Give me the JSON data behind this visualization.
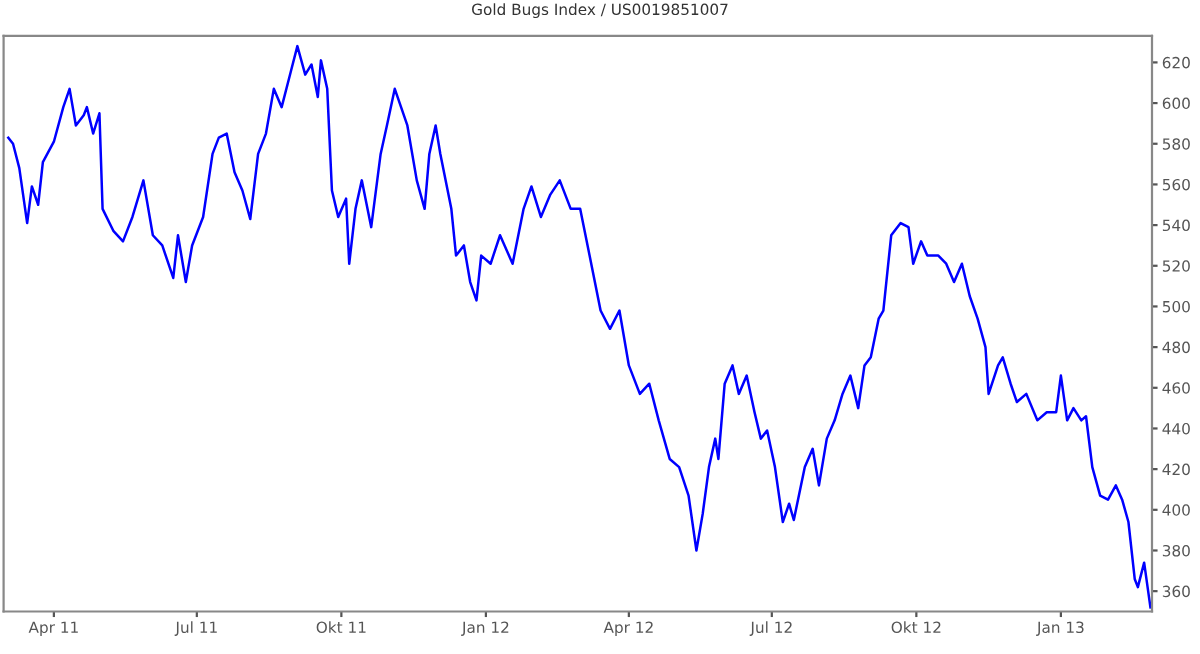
{
  "chart_data": {
    "type": "line",
    "title": "Gold Bugs Index / US0019851007",
    "x": [
      "2011-03-03",
      "2011-03-06",
      "2011-03-10",
      "2011-03-15",
      "2011-03-18",
      "2011-03-22",
      "2011-03-25",
      "2011-04-01",
      "2011-04-07",
      "2011-04-11",
      "2011-04-15",
      "2011-04-20",
      "2011-04-22",
      "2011-04-26",
      "2011-04-30",
      "2011-05-02",
      "2011-05-09",
      "2011-05-15",
      "2011-05-21",
      "2011-05-28",
      "2011-06-03",
      "2011-06-09",
      "2011-06-16",
      "2011-06-19",
      "2011-06-24",
      "2011-06-28",
      "2011-07-05",
      "2011-07-11",
      "2011-07-15",
      "2011-07-20",
      "2011-07-25",
      "2011-07-30",
      "2011-08-04",
      "2011-08-09",
      "2011-08-14",
      "2011-08-19",
      "2011-08-24",
      "2011-08-30",
      "2011-09-03",
      "2011-09-08",
      "2011-09-12",
      "2011-09-16",
      "2011-09-18",
      "2011-09-22",
      "2011-09-25",
      "2011-09-29",
      "2011-10-04",
      "2011-10-06",
      "2011-10-10",
      "2011-10-14",
      "2011-10-20",
      "2011-10-26",
      "2011-10-30",
      "2011-11-04",
      "2011-11-08",
      "2011-11-12",
      "2011-11-18",
      "2011-11-23",
      "2011-11-26",
      "2011-11-30",
      "2011-12-03",
      "2011-12-10",
      "2011-12-13",
      "2011-12-18",
      "2011-12-22",
      "2011-12-26",
      "2011-12-29",
      "2012-01-04",
      "2012-01-10",
      "2012-01-18",
      "2012-01-25",
      "2012-01-30",
      "2012-02-05",
      "2012-02-11",
      "2012-02-17",
      "2012-02-24",
      "2012-03-01",
      "2012-03-07",
      "2012-03-14",
      "2012-03-20",
      "2012-03-26",
      "2012-04-01",
      "2012-04-08",
      "2012-04-14",
      "2012-04-20",
      "2012-04-27",
      "2012-05-03",
      "2012-05-09",
      "2012-05-14",
      "2012-05-18",
      "2012-05-22",
      "2012-05-26",
      "2012-05-28",
      "2012-06-01",
      "2012-06-06",
      "2012-06-10",
      "2012-06-15",
      "2012-06-20",
      "2012-06-24",
      "2012-06-28",
      "2012-07-03",
      "2012-07-08",
      "2012-07-12",
      "2012-07-15",
      "2012-07-22",
      "2012-07-27",
      "2012-07-31",
      "2012-08-05",
      "2012-08-10",
      "2012-08-15",
      "2012-08-20",
      "2012-08-25",
      "2012-08-29",
      "2012-09-02",
      "2012-09-07",
      "2012-09-10",
      "2012-09-15",
      "2012-09-21",
      "2012-09-26",
      "2012-09-29",
      "2012-10-04",
      "2012-10-08",
      "2012-10-15",
      "2012-10-20",
      "2012-10-25",
      "2012-10-30",
      "2012-11-04",
      "2012-11-09",
      "2012-11-14",
      "2012-11-16",
      "2012-11-22",
      "2012-11-25",
      "2012-11-30",
      "2012-12-04",
      "2012-12-10",
      "2012-12-17",
      "2012-12-23",
      "2012-12-29",
      "2013-01-01",
      "2013-01-05",
      "2013-01-09",
      "2013-01-14",
      "2013-01-17",
      "2013-01-21",
      "2013-01-26",
      "2013-01-31",
      "2013-02-05",
      "2013-02-09",
      "2013-02-13",
      "2013-02-17",
      "2013-02-19",
      "2013-02-23",
      "2013-02-27"
    ],
    "series": [
      {
        "color": "#0000ff",
        "values": [
          583,
          580,
          568,
          541,
          559,
          550,
          571,
          581,
          598,
          607,
          589,
          594,
          598,
          585,
          595,
          548,
          537,
          532,
          544,
          562,
          535,
          530,
          514,
          535,
          512,
          530,
          544,
          575,
          583,
          585,
          566,
          557,
          543,
          575,
          585,
          607,
          598,
          616,
          628,
          614,
          619,
          603,
          621,
          607,
          557,
          544,
          553,
          521,
          548,
          562,
          539,
          575,
          589,
          607,
          598,
          589,
          562,
          548,
          575,
          589,
          575,
          548,
          525,
          530,
          512,
          503,
          525,
          521,
          535,
          521,
          548,
          559,
          544,
          555,
          562,
          548,
          548,
          525,
          498,
          489,
          498,
          471,
          457,
          462,
          444,
          425,
          421,
          407,
          380,
          398,
          421,
          435,
          425,
          462,
          471,
          457,
          466,
          448,
          435,
          439,
          421,
          394,
          403,
          395,
          421,
          430,
          412,
          435,
          444,
          457,
          466,
          450,
          471,
          475,
          494,
          498,
          535,
          541,
          539,
          521,
          532,
          525,
          525,
          521,
          512,
          521,
          505,
          494,
          480,
          457,
          471,
          475,
          462,
          453,
          457,
          444,
          448,
          448,
          466,
          444,
          450,
          444,
          446,
          421,
          407,
          405,
          412,
          405,
          394,
          366,
          362,
          374,
          352
        ]
      }
    ],
    "xlim": [
      "2011-02-28",
      "2013-02-28"
    ],
    "xticks": [
      {
        "value": "2011-04-01",
        "label": "Apr 11"
      },
      {
        "value": "2011-07-01",
        "label": "Jul 11"
      },
      {
        "value": "2011-10-01",
        "label": "Okt 11"
      },
      {
        "value": "2012-01-01",
        "label": "Jan 12"
      },
      {
        "value": "2012-04-01",
        "label": "Apr 12"
      },
      {
        "value": "2012-07-01",
        "label": "Jul 12"
      },
      {
        "value": "2012-10-01",
        "label": "Okt 12"
      },
      {
        "value": "2013-01-01",
        "label": "Jan 13"
      }
    ],
    "ylim": [
      350,
      633
    ],
    "yticks": [
      360,
      380,
      400,
      420,
      440,
      460,
      480,
      500,
      520,
      540,
      560,
      580,
      600,
      620
    ],
    "grid": false,
    "legend": false,
    "marker": "none",
    "line_style": "solid"
  }
}
